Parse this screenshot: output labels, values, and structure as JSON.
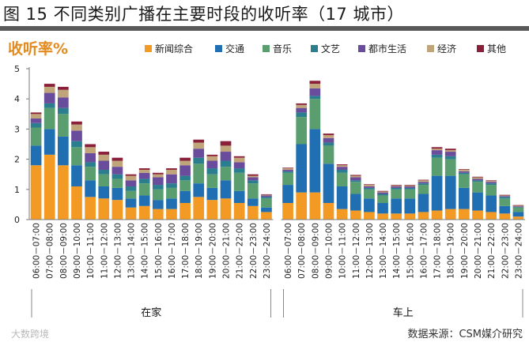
{
  "figure": {
    "title": "图 15 不同类别广播在主要时段的收听率（17 城市）",
    "source": "数据来源：CSM媒介研究",
    "watermark": "大数跨境"
  },
  "colors": {
    "title_bar": "#5a5a5a",
    "ylabel": "#e38a1f",
    "axis": "#7a7a7a",
    "grid": "#bfbfbf",
    "bracket": "#888888"
  },
  "chart_data": {
    "type": "bar",
    "stacked": true,
    "ylabel": "收听率%",
    "ylim": [
      0,
      5
    ],
    "yticks": [
      0,
      1,
      2,
      3,
      4,
      5
    ],
    "grid": false,
    "legend_position": "top",
    "categories": [
      "06:00－07:00",
      "07:00－08:00",
      "08:00－09:00",
      "09:00－10:00",
      "10:00－11:00",
      "11:00－12:00",
      "12:00－13:00",
      "13:00－14:00",
      "14:00－15:00",
      "15:00－16:00",
      "16:00－17:00",
      "17:00－18:00",
      "18:00－19:00",
      "19:00－20:00",
      "20:00－21:00",
      "21:00－22:00",
      "22:00－23:00",
      "23:00－24:00"
    ],
    "groups": [
      {
        "name": "在家",
        "series": [
          {
            "name": "新闻综合",
            "color": "#f39a25",
            "values": [
              1.8,
              2.15,
              1.8,
              1.1,
              0.75,
              0.7,
              0.65,
              0.4,
              0.45,
              0.35,
              0.35,
              0.55,
              0.75,
              0.65,
              0.7,
              0.55,
              0.45,
              0.25
            ]
          },
          {
            "name": "交通",
            "color": "#1f6fb2",
            "values": [
              0.65,
              0.85,
              0.95,
              0.7,
              0.55,
              0.4,
              0.4,
              0.3,
              0.35,
              0.3,
              0.35,
              0.4,
              0.45,
              0.4,
              0.6,
              0.4,
              0.25,
              0.15
            ]
          },
          {
            "name": "音乐",
            "color": "#5a9e6f",
            "values": [
              0.6,
              0.7,
              0.75,
              0.6,
              0.45,
              0.4,
              0.3,
              0.25,
              0.4,
              0.35,
              0.35,
              0.35,
              0.65,
              0.45,
              0.45,
              0.6,
              0.5,
              0.3
            ]
          },
          {
            "name": "文艺",
            "color": "#2a7e8e",
            "values": [
              0.15,
              0.15,
              0.2,
              0.2,
              0.15,
              0.15,
              0.15,
              0.15,
              0.15,
              0.15,
              0.15,
              0.15,
              0.2,
              0.2,
              0.2,
              0.15,
              0.1,
              0.05
            ]
          },
          {
            "name": "都市生活",
            "color": "#6a4c9c",
            "values": [
              0.15,
              0.35,
              0.35,
              0.35,
              0.3,
              0.3,
              0.25,
              0.2,
              0.2,
              0.25,
              0.3,
              0.35,
              0.3,
              0.25,
              0.3,
              0.2,
              0.1,
              0.05
            ]
          },
          {
            "name": "经济",
            "color": "#c0a57a",
            "values": [
              0.15,
              0.2,
              0.25,
              0.2,
              0.2,
              0.2,
              0.2,
              0.15,
              0.1,
              0.1,
              0.15,
              0.15,
              0.2,
              0.15,
              0.2,
              0.15,
              0.05,
              0.02
            ]
          },
          {
            "name": "其他",
            "color": "#8a1f3a",
            "values": [
              0.05,
              0.1,
              0.1,
              0.1,
              0.1,
              0.1,
              0.1,
              0.05,
              0.05,
              0.05,
              0.05,
              0.1,
              0.1,
              0.05,
              0.15,
              0.05,
              0.05,
              0.02
            ]
          }
        ]
      },
      {
        "name": "车上",
        "series": [
          {
            "name": "新闻综合",
            "color": "#f39a25",
            "values": [
              0.55,
              0.9,
              0.9,
              0.55,
              0.35,
              0.3,
              0.25,
              0.2,
              0.2,
              0.2,
              0.25,
              0.3,
              0.35,
              0.35,
              0.3,
              0.25,
              0.2,
              0.1
            ]
          },
          {
            "name": "交通",
            "color": "#1f6fb2",
            "values": [
              0.6,
              1.6,
              2.1,
              1.3,
              0.75,
              0.55,
              0.45,
              0.35,
              0.5,
              0.5,
              0.6,
              1.15,
              1.1,
              0.7,
              0.6,
              0.55,
              0.25,
              0.15
            ]
          },
          {
            "name": "音乐",
            "color": "#5a9e6f",
            "values": [
              0.4,
              0.9,
              1.0,
              0.6,
              0.45,
              0.4,
              0.3,
              0.25,
              0.3,
              0.3,
              0.3,
              0.6,
              0.55,
              0.45,
              0.35,
              0.35,
              0.25,
              0.15
            ]
          },
          {
            "name": "文艺",
            "color": "#2a7e8e",
            "values": [
              0.05,
              0.15,
              0.1,
              0.1,
              0.1,
              0.05,
              0.05,
              0.05,
              0.05,
              0.05,
              0.05,
              0.1,
              0.1,
              0.05,
              0.05,
              0.05,
              0.05,
              0.02
            ]
          },
          {
            "name": "都市生活",
            "color": "#6a4c9c",
            "values": [
              0.05,
              0.15,
              0.25,
              0.15,
              0.1,
              0.1,
              0.05,
              0.05,
              0.05,
              0.05,
              0.05,
              0.15,
              0.15,
              0.05,
              0.05,
              0.05,
              0.03,
              0.02
            ]
          },
          {
            "name": "经济",
            "color": "#c0a57a",
            "values": [
              0.05,
              0.1,
              0.15,
              0.1,
              0.05,
              0.05,
              0.05,
              0.03,
              0.03,
              0.03,
              0.05,
              0.05,
              0.05,
              0.05,
              0.05,
              0.03,
              0.02,
              0.02
            ]
          },
          {
            "name": "其他",
            "color": "#8a1f3a",
            "values": [
              0.02,
              0.05,
              0.1,
              0.05,
              0.03,
              0.03,
              0.02,
              0.02,
              0.02,
              0.02,
              0.02,
              0.05,
              0.05,
              0.02,
              0.02,
              0.02,
              0.02,
              0.02
            ]
          }
        ]
      }
    ]
  }
}
